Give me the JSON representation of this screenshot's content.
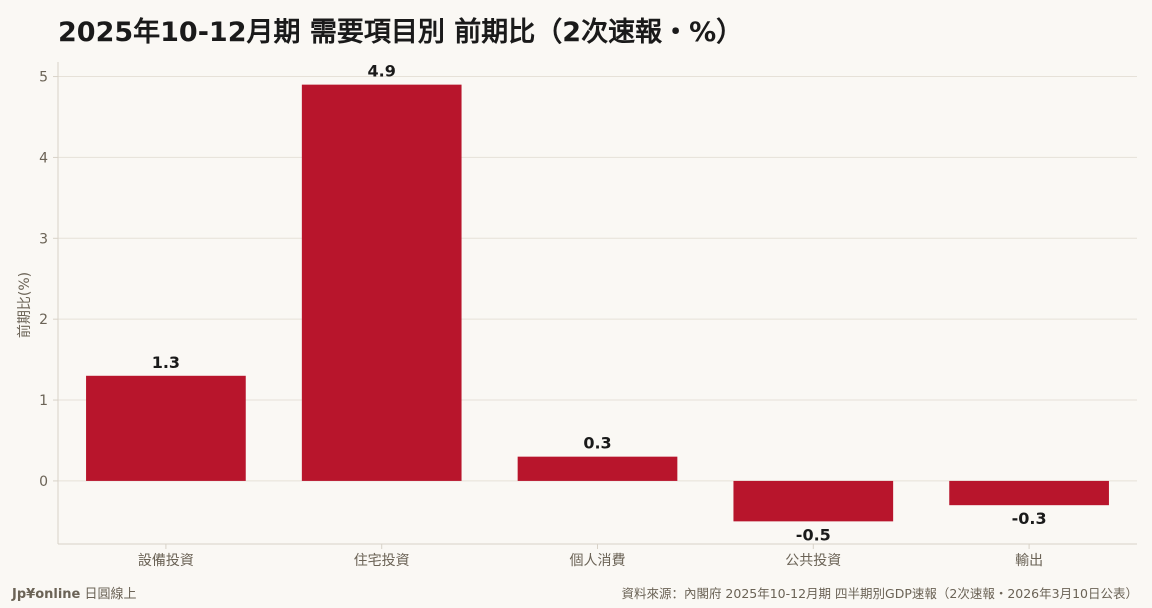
{
  "title": "2025年10-12月期 需要項目別 前期比（2次速報・%）",
  "footer": {
    "brand": "Jp¥online",
    "brand_sub": "日圓線上",
    "source": "資料來源：內閣府 2025年10-12月期 四半期別GDP速報（2次速報・2026年3月10日公表）"
  },
  "colors": {
    "bar": "#b8152c",
    "grid": "#e6e1d8",
    "axis": "#d8d2c8",
    "background": "#faf8f4"
  },
  "chart_data": {
    "type": "bar",
    "title": "2025年10-12月期 需要項目別 前期比（2次速報・%）",
    "xlabel": "",
    "ylabel": "前期比(%)",
    "categories": [
      "設備投資",
      "住宅投資",
      "個人消費",
      "公共投資",
      "輸出"
    ],
    "values": [
      1.3,
      4.9,
      0.3,
      -0.5,
      -0.3
    ],
    "value_labels": [
      "1.3",
      "4.9",
      "0.3",
      "-0.5",
      "-0.3"
    ],
    "yticks": [
      0,
      1,
      2,
      3,
      4,
      5
    ],
    "ylim": [
      -0.78,
      5.18
    ],
    "grid": true,
    "legend": "none"
  }
}
